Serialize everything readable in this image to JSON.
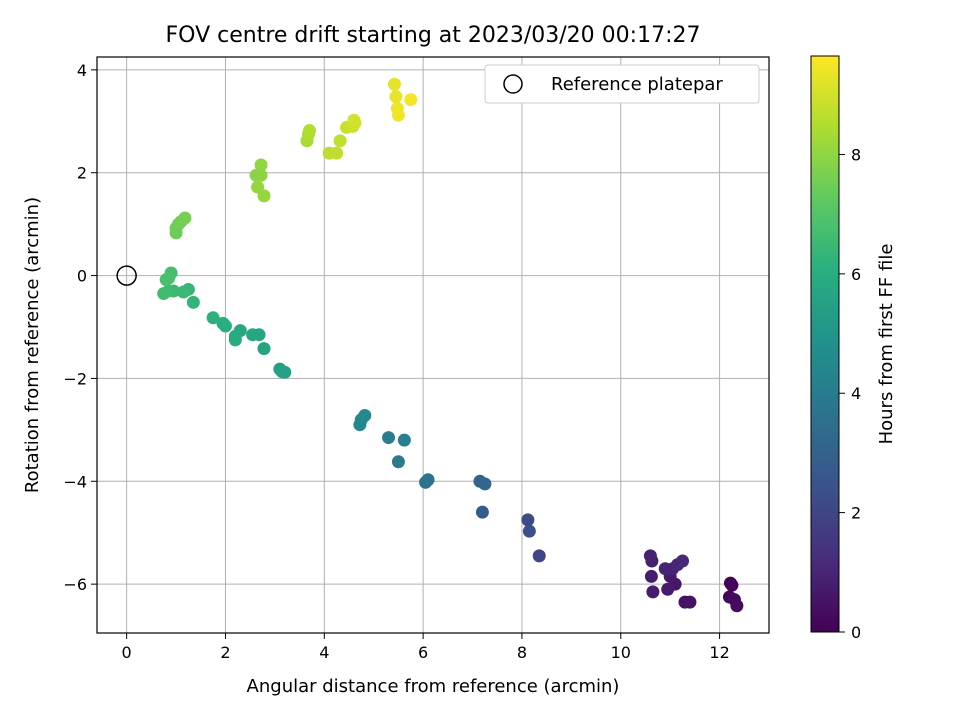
{
  "chart_data": {
    "type": "scatter",
    "title": "FOV centre drift starting at 2023/03/20 00:17:27",
    "xlabel": "Angular distance from reference (arcmin)",
    "ylabel": "Rotation from reference (arcmin)",
    "xlim": [
      -0.6,
      13.0
    ],
    "ylim": [
      -6.95,
      4.25
    ],
    "xticks": [
      0,
      2,
      4,
      6,
      8,
      10,
      12
    ],
    "yticks": [
      -6,
      -4,
      -2,
      0,
      2,
      4
    ],
    "grid": true,
    "legend": {
      "placement": "top-right",
      "entries": [
        "Reference platepar"
      ]
    },
    "reference_point": {
      "x": 0,
      "y": 0
    },
    "colorbar": {
      "label": "Hours from first FF file",
      "range": [
        0,
        9.65
      ],
      "ticks": [
        0,
        2,
        4,
        6,
        8
      ],
      "colormap": "viridis"
    },
    "points": [
      {
        "x": 12.22,
        "y": -5.98,
        "c": 0.1
      },
      {
        "x": 12.25,
        "y": -6.02,
        "c": 0.15
      },
      {
        "x": 12.2,
        "y": -6.25,
        "c": 0.2
      },
      {
        "x": 12.3,
        "y": -6.3,
        "c": 0.25
      },
      {
        "x": 12.35,
        "y": -6.42,
        "c": 0.3
      },
      {
        "x": 11.3,
        "y": -6.35,
        "c": 0.45
      },
      {
        "x": 11.4,
        "y": -6.35,
        "c": 0.5
      },
      {
        "x": 11.1,
        "y": -6.0,
        "c": 0.6
      },
      {
        "x": 11.0,
        "y": -5.85,
        "c": 0.65
      },
      {
        "x": 10.95,
        "y": -6.1,
        "c": 0.7
      },
      {
        "x": 10.65,
        "y": -6.15,
        "c": 0.75
      },
      {
        "x": 10.62,
        "y": -5.85,
        "c": 0.8
      },
      {
        "x": 10.63,
        "y": -5.55,
        "c": 0.85
      },
      {
        "x": 10.6,
        "y": -5.45,
        "c": 0.9
      },
      {
        "x": 10.9,
        "y": -5.7,
        "c": 0.95
      },
      {
        "x": 11.05,
        "y": -5.7,
        "c": 1.0
      },
      {
        "x": 11.15,
        "y": -5.62,
        "c": 1.05
      },
      {
        "x": 11.25,
        "y": -5.55,
        "c": 1.1
      },
      {
        "x": 8.35,
        "y": -5.45,
        "c": 2.0
      },
      {
        "x": 8.12,
        "y": -4.75,
        "c": 2.2
      },
      {
        "x": 8.15,
        "y": -4.97,
        "c": 2.3
      },
      {
        "x": 7.2,
        "y": -4.6,
        "c": 2.8
      },
      {
        "x": 7.15,
        "y": -4.0,
        "c": 3.1
      },
      {
        "x": 7.25,
        "y": -4.05,
        "c": 3.15
      },
      {
        "x": 6.05,
        "y": -4.02,
        "c": 3.6
      },
      {
        "x": 6.1,
        "y": -3.97,
        "c": 3.65
      },
      {
        "x": 5.5,
        "y": -3.62,
        "c": 3.95
      },
      {
        "x": 5.3,
        "y": -3.15,
        "c": 4.1
      },
      {
        "x": 5.62,
        "y": -3.2,
        "c": 4.15
      },
      {
        "x": 4.72,
        "y": -2.9,
        "c": 4.4
      },
      {
        "x": 4.75,
        "y": -2.8,
        "c": 4.45
      },
      {
        "x": 4.82,
        "y": -2.72,
        "c": 4.5
      },
      {
        "x": 3.1,
        "y": -1.82,
        "c": 5.4
      },
      {
        "x": 3.2,
        "y": -1.88,
        "c": 5.45
      },
      {
        "x": 3.15,
        "y": -1.87,
        "c": 5.5
      },
      {
        "x": 2.78,
        "y": -1.42,
        "c": 5.6
      },
      {
        "x": 2.55,
        "y": -1.15,
        "c": 5.7
      },
      {
        "x": 2.68,
        "y": -1.15,
        "c": 5.75
      },
      {
        "x": 2.3,
        "y": -1.07,
        "c": 5.8
      },
      {
        "x": 2.2,
        "y": -1.18,
        "c": 5.85
      },
      {
        "x": 2.2,
        "y": -1.25,
        "c": 5.9
      },
      {
        "x": 1.95,
        "y": -0.93,
        "c": 6.0
      },
      {
        "x": 2.0,
        "y": -0.98,
        "c": 6.05
      },
      {
        "x": 1.75,
        "y": -0.82,
        "c": 6.1
      },
      {
        "x": 1.35,
        "y": -0.52,
        "c": 6.3
      },
      {
        "x": 1.25,
        "y": -0.27,
        "c": 6.4
      },
      {
        "x": 1.15,
        "y": -0.32,
        "c": 6.45
      },
      {
        "x": 0.95,
        "y": -0.3,
        "c": 6.5
      },
      {
        "x": 0.85,
        "y": -0.3,
        "c": 6.55
      },
      {
        "x": 0.75,
        "y": -0.35,
        "c": 6.6
      },
      {
        "x": 0.9,
        "y": 0.05,
        "c": 6.7
      },
      {
        "x": 0.8,
        "y": -0.08,
        "c": 6.75
      },
      {
        "x": 0.85,
        "y": -0.05,
        "c": 6.8
      },
      {
        "x": 1.0,
        "y": 0.83,
        "c": 7.4
      },
      {
        "x": 1.0,
        "y": 0.92,
        "c": 7.45
      },
      {
        "x": 1.05,
        "y": 1.0,
        "c": 7.5
      },
      {
        "x": 1.1,
        "y": 1.05,
        "c": 7.55
      },
      {
        "x": 1.18,
        "y": 1.12,
        "c": 7.6
      },
      {
        "x": 2.62,
        "y": 1.95,
        "c": 7.9
      },
      {
        "x": 2.72,
        "y": 1.95,
        "c": 7.95
      },
      {
        "x": 2.72,
        "y": 2.15,
        "c": 8.0
      },
      {
        "x": 2.65,
        "y": 1.72,
        "c": 8.05
      },
      {
        "x": 2.78,
        "y": 1.55,
        "c": 8.1
      },
      {
        "x": 3.65,
        "y": 2.62,
        "c": 8.4
      },
      {
        "x": 3.68,
        "y": 2.75,
        "c": 8.45
      },
      {
        "x": 3.7,
        "y": 2.82,
        "c": 8.5
      },
      {
        "x": 4.1,
        "y": 2.38,
        "c": 8.65
      },
      {
        "x": 4.25,
        "y": 2.38,
        "c": 8.7
      },
      {
        "x": 4.32,
        "y": 2.62,
        "c": 8.75
      },
      {
        "x": 4.45,
        "y": 2.88,
        "c": 8.85
      },
      {
        "x": 4.58,
        "y": 2.9,
        "c": 8.9
      },
      {
        "x": 4.62,
        "y": 2.97,
        "c": 8.95
      },
      {
        "x": 4.6,
        "y": 3.02,
        "c": 9.0
      },
      {
        "x": 5.42,
        "y": 3.72,
        "c": 9.3
      },
      {
        "x": 5.45,
        "y": 3.48,
        "c": 9.35
      },
      {
        "x": 5.48,
        "y": 3.25,
        "c": 9.4
      },
      {
        "x": 5.5,
        "y": 3.12,
        "c": 9.45
      },
      {
        "x": 5.75,
        "y": 3.42,
        "c": 9.5
      }
    ]
  }
}
